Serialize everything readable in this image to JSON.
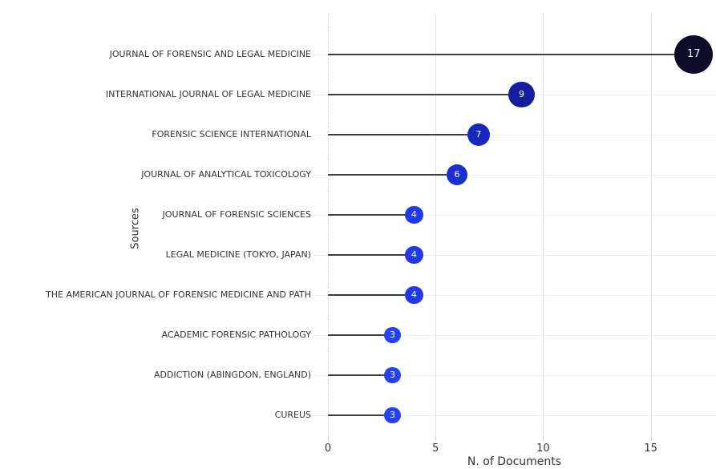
{
  "chart_data": {
    "type": "scatter",
    "variant": "horizontal-lollipop",
    "title": "",
    "xlabel": "N. of Documents",
    "ylabel": "Sources",
    "categories": [
      "JOURNAL OF FORENSIC AND LEGAL MEDICINE",
      "INTERNATIONAL JOURNAL OF LEGAL MEDICINE",
      "FORENSIC SCIENCE INTERNATIONAL",
      "JOURNAL OF ANALYTICAL TOXICOLOGY",
      "JOURNAL OF FORENSIC SCIENCES",
      "LEGAL MEDICINE (TOKYO, JAPAN)",
      "THE AMERICAN JOURNAL OF FORENSIC MEDICINE AND PATH",
      "ACADEMIC FORENSIC PATHOLOGY",
      "ADDICTION (ABINGDON, ENGLAND)",
      "CUREUS"
    ],
    "values": [
      17,
      9,
      7,
      6,
      4,
      4,
      4,
      3,
      3,
      3
    ],
    "xticks": [
      0,
      5,
      10,
      15
    ],
    "xlim": [
      -0.75,
      18
    ],
    "grid": true,
    "legend": "none",
    "zero_line_style": "dashed",
    "colors": {
      "point_by_value": {
        "3": "#2342f5",
        "4": "#2039ea",
        "6": "#1c2fd0",
        "7": "#1827bd",
        "9": "#141e9e",
        "17": "#0e0c28"
      },
      "point_label": "#ffffff",
      "stem": "#3f3f3f",
      "h_gridline": "#efefef",
      "v_gridline": "#e4e4e4",
      "zero_line": "#d9d9d9",
      "text": "#333333",
      "background": "#ffffff"
    }
  }
}
